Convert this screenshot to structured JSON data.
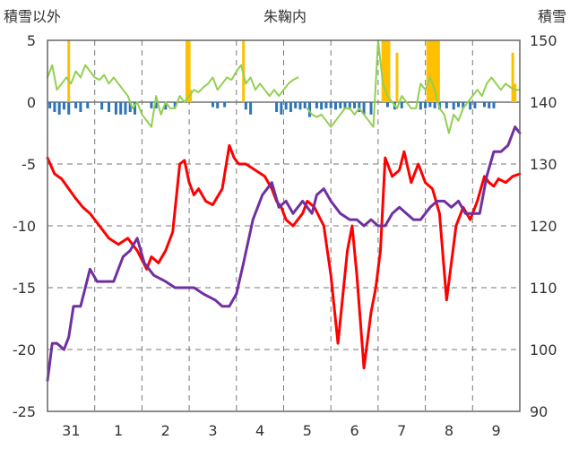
{
  "chart_data": {
    "type": "line",
    "title": "朱鞠内",
    "ylabel": "積雪以外",
    "y2label": "積雪",
    "ylim": [
      -25,
      5
    ],
    "y2lim": [
      90,
      150
    ],
    "yticks": [
      5,
      0,
      -5,
      -10,
      -15,
      -20,
      -25
    ],
    "y2ticks": [
      150,
      140,
      130,
      120,
      110,
      100,
      90
    ],
    "xlim": [
      0,
      10
    ],
    "xticks": [
      {
        "pos": 0.5,
        "label": "31"
      },
      {
        "pos": 1.5,
        "label": "1"
      },
      {
        "pos": 2.5,
        "label": "2"
      },
      {
        "pos": 3.5,
        "label": "3"
      },
      {
        "pos": 4.5,
        "label": "4"
      },
      {
        "pos": 5.5,
        "label": "5"
      },
      {
        "pos": 6.5,
        "label": "6"
      },
      {
        "pos": 7.5,
        "label": "7"
      },
      {
        "pos": 8.5,
        "label": "8"
      },
      {
        "pos": 9.5,
        "label": "9"
      }
    ],
    "grid": true,
    "colors": {
      "temperature": "#ff0000",
      "snow_depth": "#7030a0",
      "wind": "#92d050",
      "precip": "#ffc000",
      "neg_bar": "#2e75b6"
    },
    "series": [
      {
        "key": "temperature",
        "axis": "left",
        "x": [
          0,
          0.15,
          0.3,
          0.45,
          0.6,
          0.75,
          0.9,
          1.1,
          1.3,
          1.5,
          1.7,
          1.9,
          2.1,
          2.2,
          2.35,
          2.5,
          2.65,
          2.8,
          2.9,
          3.0,
          3.1,
          3.2,
          3.35,
          3.5,
          3.7,
          3.85,
          3.95,
          4.05,
          4.2,
          4.4,
          4.6,
          4.75,
          4.85,
          4.95,
          5.05,
          5.2,
          5.4,
          5.5,
          5.65,
          5.85,
          6.0,
          6.15,
          6.35,
          6.45,
          6.55,
          6.7,
          6.85,
          6.95,
          7.05,
          7.15,
          7.3,
          7.45,
          7.55,
          7.7,
          7.85,
          8.0,
          8.15,
          8.3,
          8.45,
          8.55,
          8.65,
          8.8,
          8.95,
          9.1,
          9.25,
          9.35,
          9.45,
          9.55,
          9.7,
          9.85,
          10
        ],
        "y": [
          -4.5,
          -5.8,
          -6.2,
          -7.0,
          -7.8,
          -8.5,
          -9.0,
          -10.0,
          -11.0,
          -11.5,
          -11.0,
          -12.0,
          -13.5,
          -12.5,
          -13.0,
          -12.0,
          -10.5,
          -5.0,
          -4.7,
          -6.5,
          -7.5,
          -7.0,
          -8.0,
          -8.3,
          -7.0,
          -3.5,
          -4.5,
          -5.0,
          -5.0,
          -5.5,
          -6.0,
          -7.0,
          -8.0,
          -8.5,
          -9.5,
          -10.0,
          -9.0,
          -8.0,
          -8.5,
          -10.0,
          -14.0,
          -19.5,
          -12.0,
          -10.0,
          -14.0,
          -21.5,
          -17.0,
          -15.0,
          -12.0,
          -4.5,
          -6.0,
          -5.5,
          -4.0,
          -6.5,
          -5.0,
          -6.5,
          -7.0,
          -9.0,
          -16.0,
          -13.0,
          -10.0,
          -8.5,
          -9.5,
          -8.0,
          -6.0,
          -6.5,
          -6.8,
          -6.2,
          -6.5,
          -6.0,
          -5.8
        ]
      },
      {
        "key": "snow_depth",
        "axis": "right",
        "x": [
          0,
          0.1,
          0.2,
          0.35,
          0.45,
          0.55,
          0.7,
          0.8,
          0.9,
          1.05,
          1.2,
          1.4,
          1.6,
          1.75,
          1.9,
          2.05,
          2.25,
          2.5,
          2.7,
          2.9,
          3.1,
          3.3,
          3.55,
          3.7,
          3.85,
          4.0,
          4.15,
          4.35,
          4.45,
          4.55,
          4.65,
          4.75,
          4.9,
          5.05,
          5.2,
          5.4,
          5.6,
          5.7,
          5.85,
          6.0,
          6.2,
          6.4,
          6.55,
          6.7,
          6.85,
          7.0,
          7.15,
          7.3,
          7.45,
          7.6,
          7.75,
          7.9,
          8.1,
          8.25,
          8.4,
          8.55,
          8.7,
          8.85,
          9.0,
          9.15,
          9.3,
          9.45,
          9.6,
          9.75,
          9.9,
          10
        ],
        "y": [
          95,
          101,
          101,
          100,
          102,
          107,
          107,
          110,
          113,
          111,
          111,
          111,
          115,
          116,
          118,
          114,
          112,
          111,
          110,
          110,
          110,
          109,
          108,
          107,
          107,
          109,
          114,
          121,
          123,
          125,
          126,
          127,
          123,
          124,
          122,
          124,
          122,
          125,
          126,
          124,
          122,
          121,
          121,
          120,
          121,
          120,
          120,
          122,
          123,
          122,
          121,
          121,
          123,
          124,
          124,
          123,
          124,
          122,
          122,
          122,
          128,
          132,
          132,
          133,
          136,
          135
        ]
      },
      {
        "key": "wind",
        "axis": "left",
        "x": [
          0,
          0.1,
          0.2,
          0.3,
          0.4,
          0.5,
          0.6,
          0.7,
          0.8,
          0.9,
          1.0,
          1.1,
          1.2,
          1.3,
          1.4,
          1.5,
          1.6,
          1.7,
          1.8,
          1.9,
          2.0,
          2.1,
          2.2,
          2.3,
          2.4,
          2.5,
          2.6,
          2.7,
          2.8,
          2.9,
          3.0,
          3.1,
          3.2,
          3.3,
          3.4,
          3.5,
          3.6,
          3.7,
          3.8,
          3.9,
          4.0,
          4.1,
          4.2,
          4.3,
          4.4,
          4.5,
          4.6,
          4.7,
          4.8,
          4.9,
          5.0,
          5.1,
          5.2,
          5.3,
          5.4,
          5.5,
          5.6,
          5.7,
          5.8,
          5.9,
          6.0,
          6.1,
          6.2,
          6.3,
          6.4,
          6.5,
          6.6,
          6.7,
          6.8,
          6.9,
          7.0,
          7.1,
          7.2,
          7.3,
          7.4,
          7.5,
          7.6,
          7.7,
          7.8,
          7.9,
          8.0,
          8.1,
          8.2,
          8.3,
          8.4,
          8.5,
          8.6,
          8.7,
          8.8,
          8.9,
          9.0,
          9.1,
          9.2,
          9.3,
          9.4,
          9.5,
          9.6,
          9.7,
          9.8,
          9.9,
          10
        ],
        "y": [
          2.0,
          3.0,
          1.0,
          1.5,
          2.0,
          1.5,
          2.5,
          2.0,
          3.0,
          2.5,
          2.0,
          1.8,
          2.2,
          1.5,
          2.0,
          1.5,
          1.0,
          0.5,
          -0.5,
          0.0,
          -1.0,
          -1.5,
          -2.0,
          0.5,
          -1.0,
          0.0,
          -0.5,
          -0.5,
          0.5,
          0.0,
          0.5,
          1.0,
          0.8,
          1.2,
          1.5,
          2.0,
          1.0,
          1.5,
          2.0,
          1.8,
          2.5,
          3.0,
          1.5,
          2.0,
          1.0,
          1.5,
          1.0,
          0.5,
          1.0,
          0.5,
          1.0,
          1.5,
          1.8,
          2.0,
          null,
          -0.5,
          -1.0,
          -1.2,
          -1.0,
          -1.5,
          -2.0,
          -1.5,
          -1.0,
          -0.5,
          -0.5,
          -1.0,
          -0.5,
          -1.0,
          -1.5,
          -2.0,
          5.0,
          1.5,
          0.5,
          0.0,
          -0.5,
          0.5,
          0.0,
          -0.5,
          -0.5,
          1.5,
          1.0,
          2.0,
          1.0,
          -0.5,
          -1.0,
          -2.5,
          -1.0,
          -1.5,
          -0.5,
          0.0,
          0.5,
          1.0,
          0.5,
          1.5,
          2.0,
          1.5,
          1.0,
          1.5,
          1.2,
          1.0,
          1.0
        ]
      }
    ],
    "bars_positive": {
      "key": "precip",
      "axis": "left",
      "x": [
        0.45,
        2.95,
        2.98,
        3.0,
        3.03,
        4.15,
        7.1,
        7.12,
        7.15,
        7.18,
        7.2,
        7.23,
        7.4,
        8.05,
        8.08,
        8.1,
        8.13,
        8.15,
        8.18,
        8.2,
        8.23,
        8.25,
        8.28,
        9.85,
        9.9
      ],
      "y": [
        5,
        5,
        5,
        5,
        1.0,
        5,
        5,
        5,
        5,
        5,
        5,
        5,
        4,
        5,
        5,
        5,
        5,
        5,
        5,
        5,
        5,
        5,
        5,
        4,
        1.5
      ]
    },
    "bars_negative": {
      "key": "neg_bar",
      "axis": "left",
      "x": [
        0.05,
        0.15,
        0.25,
        0.35,
        0.45,
        0.6,
        0.7,
        0.85,
        1.15,
        1.3,
        1.45,
        1.55,
        1.65,
        1.75,
        1.85,
        2.2,
        2.3,
        2.5,
        2.7,
        3.5,
        3.6,
        3.75,
        4.2,
        4.3,
        4.85,
        4.95,
        5.05,
        5.15,
        5.25,
        5.35,
        5.45,
        5.55,
        5.7,
        5.8,
        5.9,
        6.0,
        6.1,
        6.2,
        6.3,
        6.4,
        6.5,
        6.6,
        6.7,
        6.85,
        7.2,
        7.35,
        7.5,
        7.9,
        8.0,
        8.1,
        8.2,
        8.3,
        8.45,
        8.6,
        8.7,
        8.8,
        8.95,
        9.05,
        9.25,
        9.35,
        9.45
      ],
      "y": [
        -0.5,
        -0.8,
        -1.0,
        -0.6,
        -1.0,
        -0.5,
        -0.8,
        -0.5,
        -0.6,
        -0.8,
        -1.0,
        -1.0,
        -1.0,
        -0.8,
        -1.0,
        -0.5,
        -0.5,
        -0.6,
        -0.4,
        -0.4,
        -0.5,
        -0.4,
        -0.6,
        -1.0,
        -0.8,
        -1.0,
        -0.6,
        -0.8,
        -0.5,
        -0.6,
        -0.5,
        -1.2,
        -0.5,
        -0.6,
        -0.5,
        -0.5,
        -0.6,
        -0.5,
        -0.5,
        -0.6,
        -0.5,
        -0.8,
        -1.0,
        -1.0,
        -0.4,
        -0.6,
        -0.5,
        -0.6,
        -0.5,
        -0.4,
        -0.5,
        -0.6,
        -0.5,
        -0.6,
        -0.4,
        -0.5,
        -0.6,
        -0.5,
        -0.4,
        -0.5,
        -0.5
      ]
    }
  }
}
